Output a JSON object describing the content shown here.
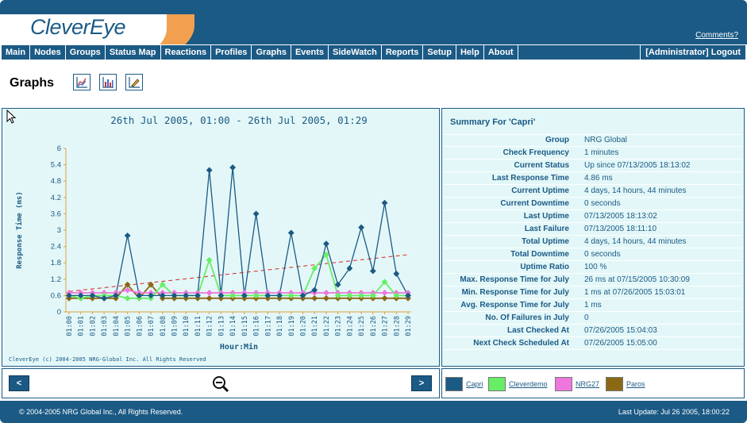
{
  "app": {
    "logo": "CleverEye",
    "comments_link": "Comments?"
  },
  "nav": {
    "items": [
      "Main",
      "Nodes",
      "Groups",
      "Status Map",
      "Reactions",
      "Profiles",
      "Graphs",
      "Events",
      "SideWatch",
      "Reports",
      "Setup",
      "Help",
      "About"
    ],
    "user_logout": "[Administrator] Logout"
  },
  "page": {
    "title": "Graphs",
    "tools": [
      "line-chart-icon",
      "bar-chart-icon",
      "edit-chart-icon"
    ]
  },
  "chart_data": {
    "type": "line",
    "title": "26th Jul 2005, 01:00 - 26th Jul 2005, 01:29",
    "xlabel": "Hour:Min",
    "ylabel": "Response Time (ms)",
    "ylim": [
      0,
      6
    ],
    "yticks": [
      "0",
      "0.6",
      "1.2",
      "1.8",
      "2.4",
      "3",
      "3.6",
      "4.2",
      "4.8",
      "5.4",
      "6"
    ],
    "categories": [
      "01:00",
      "01:01",
      "01:02",
      "01:03",
      "01:04",
      "01:05",
      "01:06",
      "01:07",
      "01:08",
      "01:09",
      "01:10",
      "01:11",
      "01:12",
      "01:13",
      "01:14",
      "01:15",
      "01:16",
      "01:17",
      "01:18",
      "01:19",
      "01:20",
      "01:21",
      "01:22",
      "01:23",
      "01:24",
      "01:25",
      "01:26",
      "01:27",
      "01:28",
      "01:29"
    ],
    "series": [
      {
        "name": "Capri",
        "color": "#1b5a85",
        "marker": "diamond",
        "values": [
          0.6,
          0.6,
          0.6,
          0.5,
          0.6,
          2.8,
          0.6,
          0.6,
          0.6,
          0.6,
          0.6,
          0.6,
          5.2,
          0.6,
          5.3,
          0.6,
          3.6,
          0.6,
          0.6,
          2.9,
          0.6,
          0.8,
          2.5,
          1.0,
          1.6,
          3.1,
          1.5,
          4.0,
          1.4,
          0.6
        ]
      },
      {
        "name": "Cleverdemo",
        "color": "#66ee66",
        "marker": "diamond",
        "values": [
          0.6,
          0.5,
          0.6,
          0.6,
          0.6,
          0.5,
          0.5,
          0.5,
          1.0,
          0.6,
          0.6,
          0.6,
          1.9,
          0.6,
          0.6,
          0.6,
          0.6,
          0.6,
          0.6,
          0.6,
          0.6,
          1.6,
          2.1,
          0.6,
          0.6,
          0.6,
          0.6,
          1.1,
          0.6,
          0.6
        ]
      },
      {
        "name": "NRG27",
        "color": "#ee77dd",
        "marker": "diamond",
        "values": [
          0.7,
          0.7,
          0.7,
          0.7,
          0.7,
          0.8,
          0.7,
          0.7,
          0.7,
          0.7,
          0.7,
          0.7,
          0.7,
          0.7,
          0.7,
          0.7,
          0.7,
          0.7,
          0.7,
          0.7,
          0.7,
          0.7,
          0.7,
          0.7,
          0.7,
          0.7,
          0.7,
          0.7,
          0.7,
          0.7
        ]
      },
      {
        "name": "Paros",
        "color": "#8b6914",
        "marker": "diamond",
        "values": [
          0.5,
          0.5,
          0.5,
          0.5,
          0.5,
          1.0,
          0.5,
          1.0,
          0.5,
          0.5,
          0.5,
          0.5,
          0.5,
          0.5,
          0.5,
          0.5,
          0.5,
          0.5,
          0.5,
          0.5,
          0.5,
          0.5,
          0.5,
          0.5,
          0.5,
          0.5,
          0.5,
          0.5,
          0.5,
          0.5
        ]
      }
    ],
    "trendline": {
      "color": "#dd2222",
      "style": "dashed",
      "start": 0.75,
      "end": 2.1
    },
    "copyright": "CleverEye (c) 2004-2005 NRG-Global Inc. All Rights Reserved"
  },
  "summary": {
    "title": "Summary For 'Capri'",
    "rows": [
      {
        "label": "Group",
        "value": "NRG Global"
      },
      {
        "label": "Check Frequency",
        "value": "1 minutes"
      },
      {
        "label": "Current Status",
        "value": "Up since 07/13/2005 18:13:02"
      },
      {
        "label": "Last Response Time",
        "value": "4.86 ms"
      },
      {
        "label": "Current Uptime",
        "value": "4 days, 14 hours, 44 minutes"
      },
      {
        "label": "Current Downtime",
        "value": "0 seconds"
      },
      {
        "label": "Last Uptime",
        "value": "07/13/2005 18:13:02"
      },
      {
        "label": "Last Failure",
        "value": "07/13/2005 18:11:10"
      },
      {
        "label": "Total Uptime",
        "value": "4 days, 14 hours, 44 minutes"
      },
      {
        "label": "Total Downtime",
        "value": "0 seconds"
      },
      {
        "label": "Uptime Ratio",
        "value": "100 %"
      },
      {
        "label": "Max. Response Time for July",
        "value": "26 ms at 07/15/2005 10:30:09"
      },
      {
        "label": "Min. Response Time for July",
        "value": "1 ms at 07/26/2005 15:03:01"
      },
      {
        "label": "Avg. Response Time for July",
        "value": "1 ms"
      },
      {
        "label": "No. Of Failures in July",
        "value": "0"
      },
      {
        "label": "Last Checked At",
        "value": "07/26/2005 15:04:03"
      },
      {
        "label": "Next Check Scheduled At",
        "value": "07/26/2005 15:05:00"
      }
    ]
  },
  "controls": {
    "prev_label": "<",
    "next_label": ">",
    "zoom_icon": "zoom-out-icon"
  },
  "legend": [
    {
      "name": "Capri",
      "color": "#1b5a85"
    },
    {
      "name": "Cleverdemo",
      "color": "#66ee66"
    },
    {
      "name": "NRG27",
      "color": "#ee77dd"
    },
    {
      "name": "Paros",
      "color": "#8b6914"
    }
  ],
  "footer": {
    "copyright": "© 2004-2005 NRG Global Inc., All Rights Reserved.",
    "last_update": "Last Update: Jul 26 2005, 18:00:22"
  },
  "colors": {
    "brand": "#1b5a85",
    "accent": "#f1a050",
    "panel_bg": "#e3f7f8"
  }
}
